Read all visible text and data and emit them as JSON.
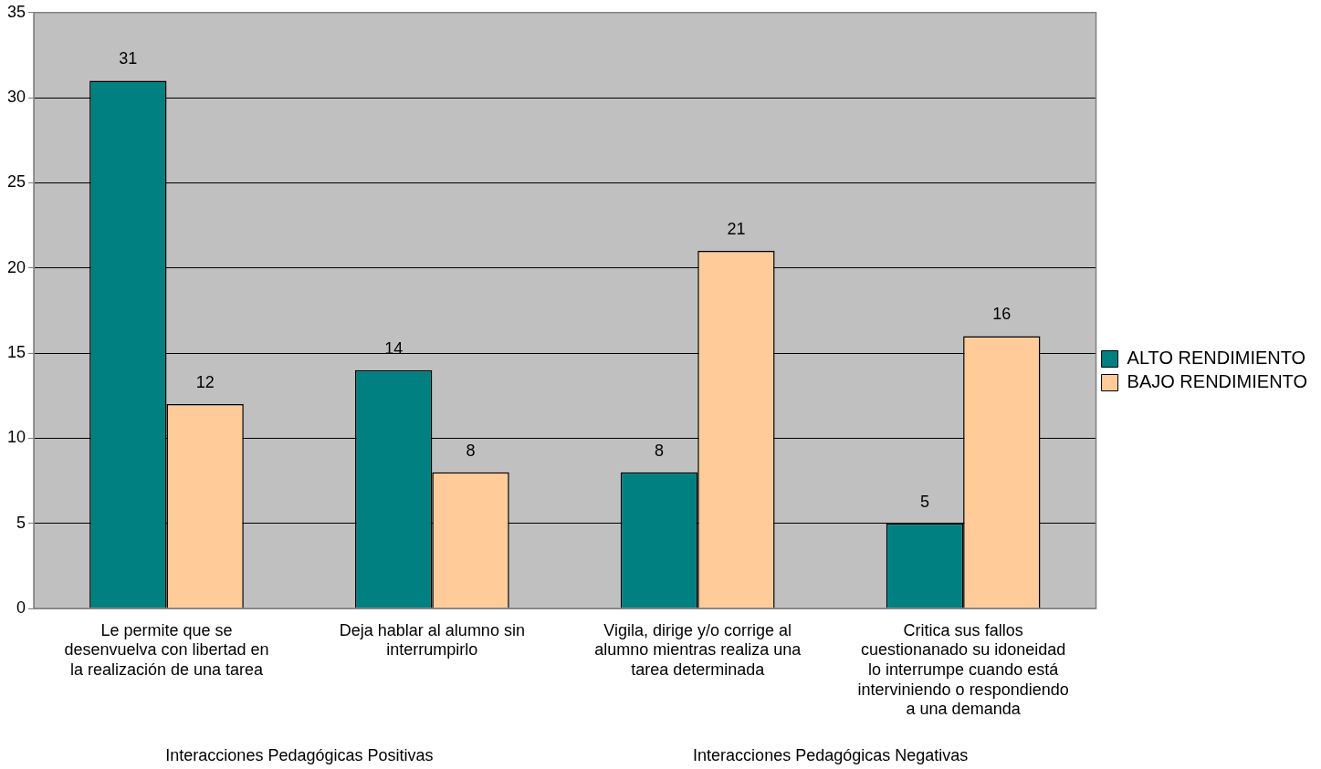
{
  "chart_data": {
    "type": "bar",
    "categories": [
      "Le permite que se desenvuelva con libertad en la realización de una tarea",
      "Deja hablar al alumno sin interrumpirlo",
      "Vigila, dirige y/o corrige al alumno mientras realiza una tarea determinada",
      "Critica sus fallos cuestionanado su idoneidad lo interrumpe cuando está interviniendo o respondiendo a una demanda"
    ],
    "series": [
      {
        "name": "ALTO RENDIMIENTO",
        "color": "#008080",
        "values": [
          31,
          14,
          8,
          5
        ]
      },
      {
        "name": "BAJO RENDIMIENTO",
        "color": "#ffcc99",
        "values": [
          12,
          8,
          21,
          16
        ]
      }
    ],
    "ylim": [
      0,
      35
    ],
    "yticks": [
      0,
      5,
      10,
      15,
      20,
      25,
      30,
      35
    ],
    "grid": "y",
    "legend": "right",
    "data_labels": true,
    "annotations": [
      "Interacciones Pedagógicas Positivas",
      "Interacciones Pedagógicas Negativas"
    ]
  }
}
